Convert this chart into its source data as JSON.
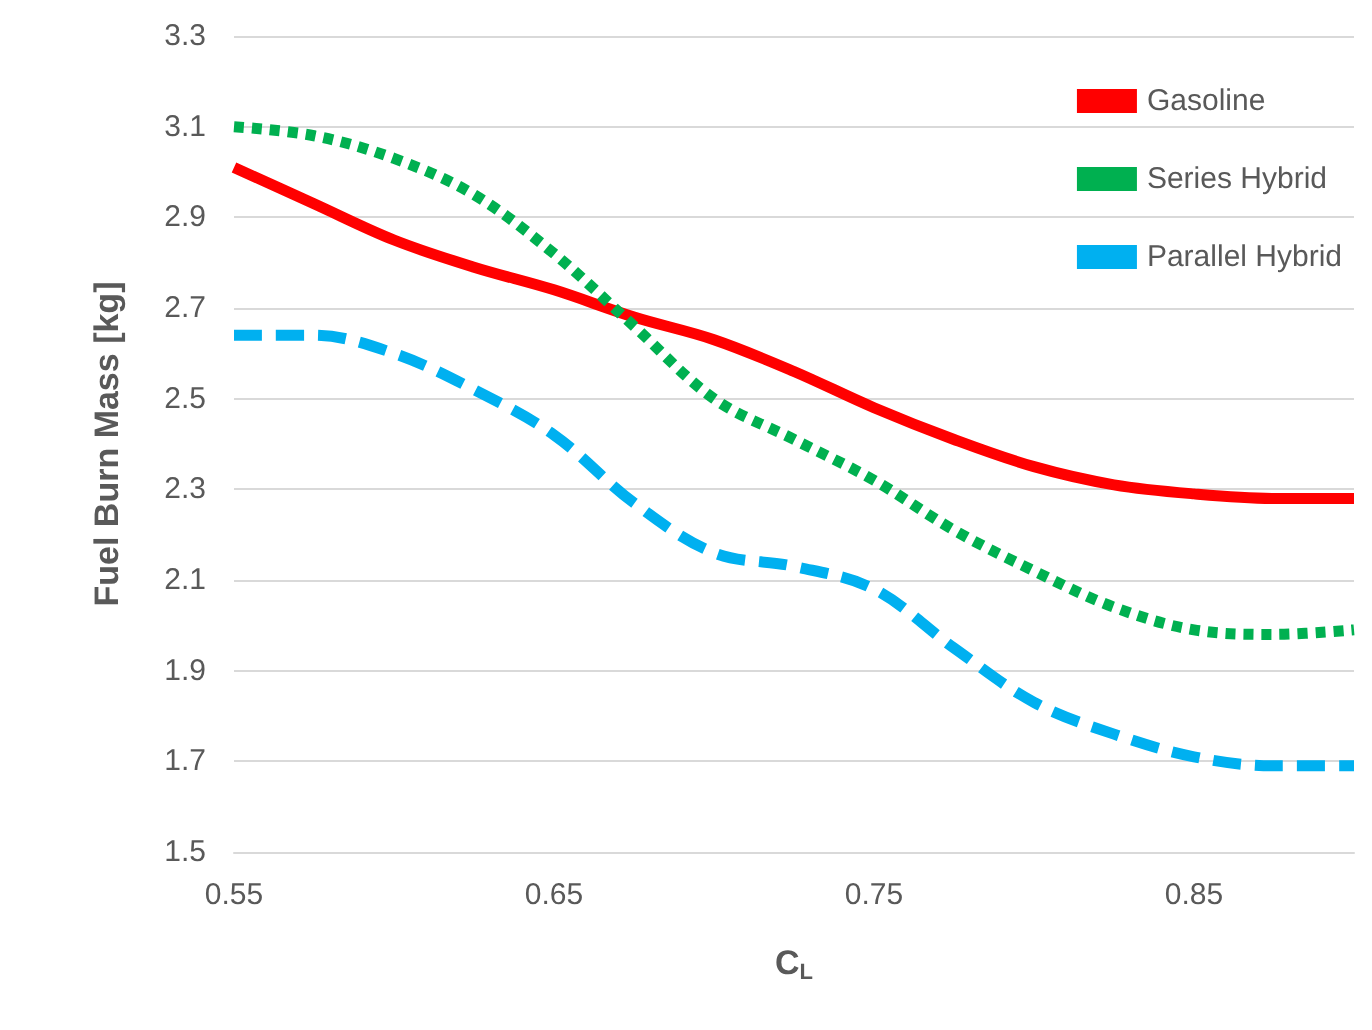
{
  "chart_data": {
    "type": "line",
    "xlabel": "C$_{L}$",
    "ylabel": "Fuel Burn Mass [kg]",
    "x": [
      0.55,
      0.575,
      0.6,
      0.625,
      0.65,
      0.675,
      0.7,
      0.725,
      0.75,
      0.775,
      0.8,
      0.825,
      0.85,
      0.875,
      0.9
    ],
    "series": [
      {
        "name": "Gasoline",
        "color": "#ff0000",
        "line_style": "solid",
        "values": [
          3.01,
          2.93,
          2.85,
          2.79,
          2.74,
          2.68,
          2.63,
          2.56,
          2.48,
          2.41,
          2.35,
          2.31,
          2.29,
          2.28,
          2.28
        ]
      },
      {
        "name": "Series Hybrid",
        "color": "#00b050",
        "line_style": "dotted",
        "values": [
          3.1,
          3.08,
          3.03,
          2.95,
          2.82,
          2.66,
          2.5,
          2.41,
          2.32,
          2.21,
          2.12,
          2.04,
          1.99,
          1.98,
          1.99
        ]
      },
      {
        "name": "Parallel Hybrid",
        "color": "#00b0f0",
        "line_style": "dashed",
        "values": [
          2.64,
          2.64,
          2.6,
          2.52,
          2.42,
          2.27,
          2.16,
          2.13,
          2.08,
          1.95,
          1.83,
          1.76,
          1.71,
          1.69,
          1.69
        ]
      }
    ],
    "xlim": [
      0.55,
      0.9
    ],
    "xticks": [
      0.55,
      0.65,
      0.75,
      0.85
    ],
    "ylim": [
      1.5,
      3.3
    ],
    "yticks": [
      1.5,
      1.7,
      1.9,
      2.1,
      2.3,
      2.5,
      2.7,
      2.9,
      3.1,
      3.3
    ],
    "grid": "y",
    "legend": "top right",
    "marker": "none"
  }
}
